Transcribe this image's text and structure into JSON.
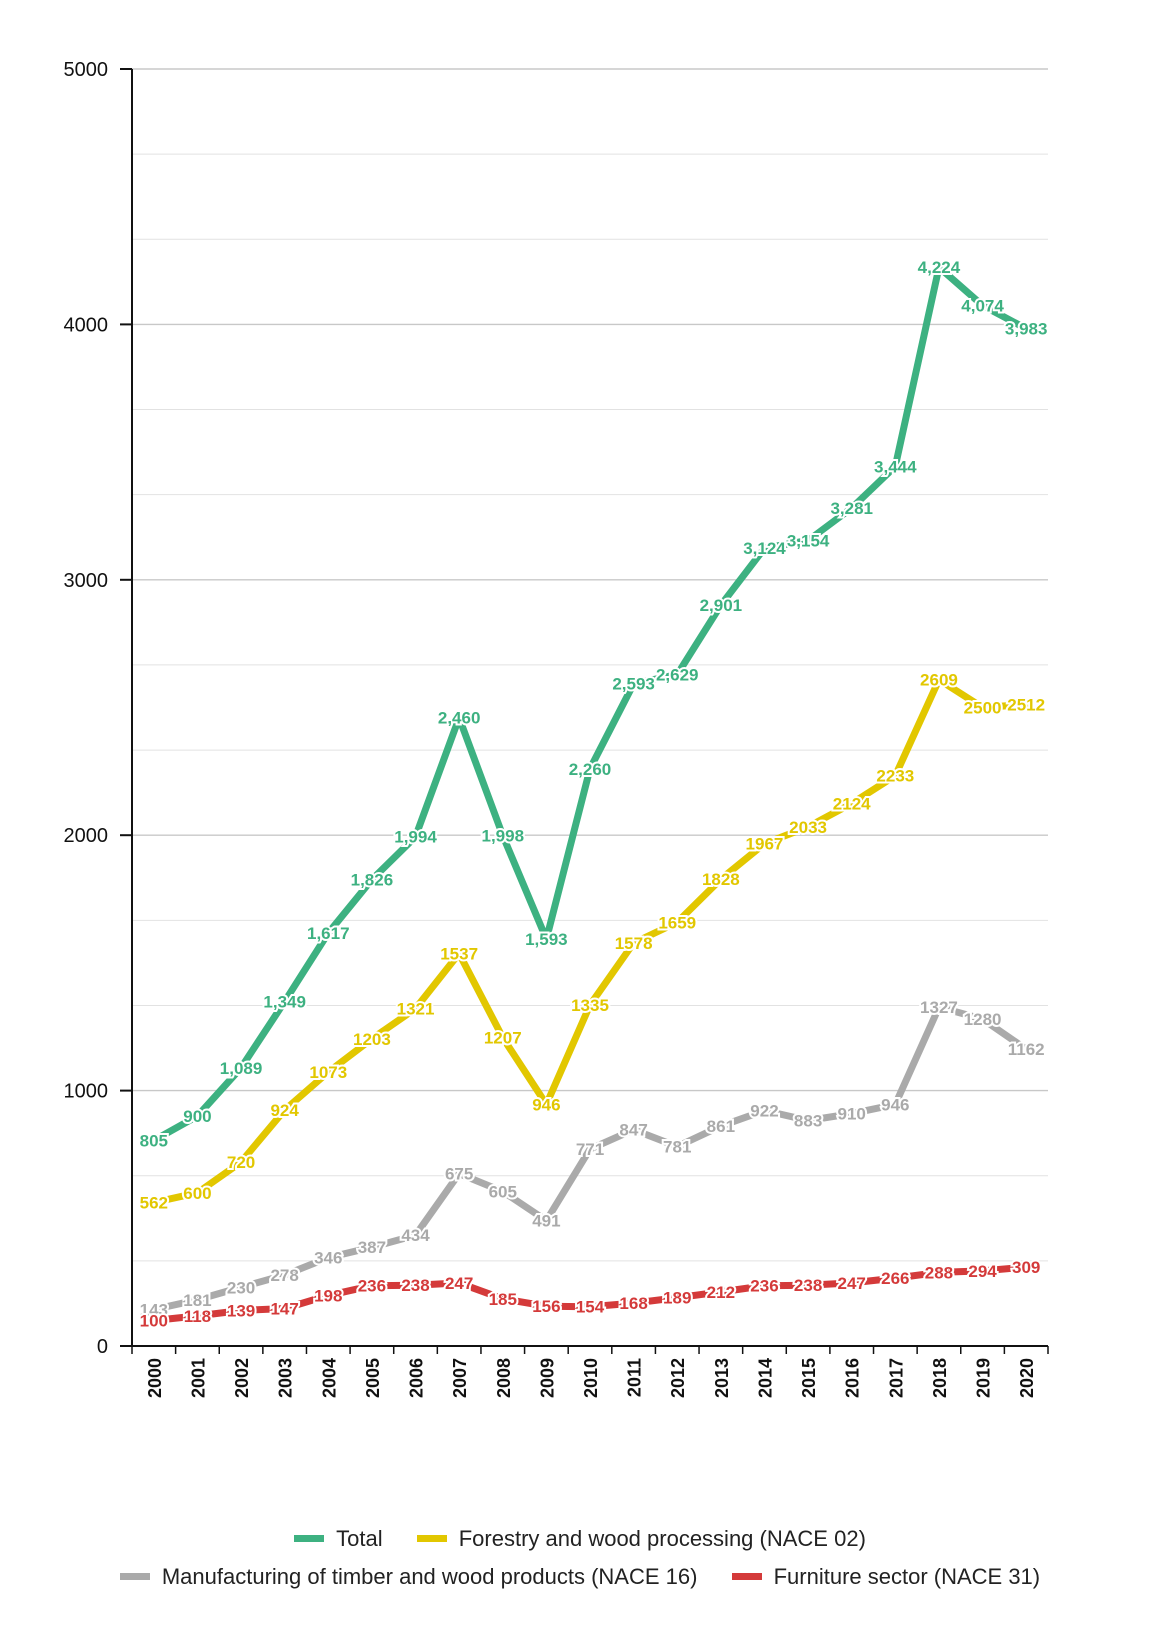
{
  "chart_data": {
    "type": "line",
    "categories": [
      "2000",
      "2001",
      "2002",
      "2003",
      "2004",
      "2005",
      "2006",
      "2007",
      "2008",
      "2009",
      "2010",
      "2011",
      "2012",
      "2013",
      "2014",
      "2015",
      "2016",
      "2017",
      "2018",
      "2019",
      "2020"
    ],
    "ylim": [
      0,
      5000
    ],
    "yticks": [
      0,
      1000,
      2000,
      3000,
      4000,
      5000
    ],
    "grid": true,
    "legend_position": "bottom",
    "series": [
      {
        "name": "Total",
        "color": "#3db181",
        "values": [
          805,
          900,
          1089,
          1349,
          1617,
          1826,
          1994,
          2460,
          1998,
          1593,
          2260,
          2593,
          2629,
          2901,
          3124,
          3154,
          3281,
          3444,
          4224,
          4074,
          3983
        ],
        "labels": [
          "805",
          "900",
          "1,089",
          "1,349",
          "1,617",
          "1,826",
          "1,994",
          "2,460",
          "1,998",
          "1,593",
          "2,260",
          "2,593",
          "2,629",
          "2,901",
          "3,124",
          "3,154",
          "3,281",
          "3,444",
          "4,224",
          "4,074",
          "3,983"
        ]
      },
      {
        "name": "Forestry and wood processing (NACE 02)",
        "color": "#e2c700",
        "values": [
          562,
          600,
          720,
          924,
          1073,
          1203,
          1321,
          1537,
          1207,
          946,
          1335,
          1578,
          1659,
          1828,
          1967,
          2033,
          2124,
          2233,
          2609,
          2500,
          2512
        ],
        "labels": [
          "562",
          "600",
          "720",
          "924",
          "1073",
          "1203",
          "1321",
          "1537",
          "1207",
          "946",
          "1335",
          "1578",
          "1659",
          "1828",
          "1967",
          "2033",
          "2124",
          "2233",
          "2609",
          "2500",
          "2512"
        ]
      },
      {
        "name": "Manufacturing of timber and wood products (NACE 16)",
        "color": "#aaaaaa",
        "values": [
          143,
          181,
          230,
          278,
          346,
          387,
          434,
          675,
          605,
          491,
          771,
          847,
          781,
          861,
          922,
          883,
          910,
          946,
          1327,
          1280,
          1162
        ],
        "labels": [
          "143",
          "181",
          "230",
          "278",
          "346",
          "387",
          "434",
          "675",
          "605",
          "491",
          "771",
          "847",
          "781",
          "861",
          "922",
          "883",
          "910",
          "946",
          "1327",
          "1280",
          "1162"
        ]
      },
      {
        "name": "Furniture sector (NACE 31)",
        "color": "#d43a3a",
        "values": [
          100,
          118,
          139,
          147,
          198,
          236,
          238,
          247,
          185,
          156,
          154,
          168,
          189,
          212,
          236,
          238,
          247,
          266,
          288,
          294,
          309
        ],
        "labels": [
          "100",
          "118",
          "139",
          "147",
          "198",
          "236",
          "238",
          "247",
          "185",
          "156",
          "154",
          "168",
          "189",
          "212",
          "236",
          "238",
          "247",
          "266",
          "288",
          "294",
          "309"
        ]
      }
    ]
  }
}
